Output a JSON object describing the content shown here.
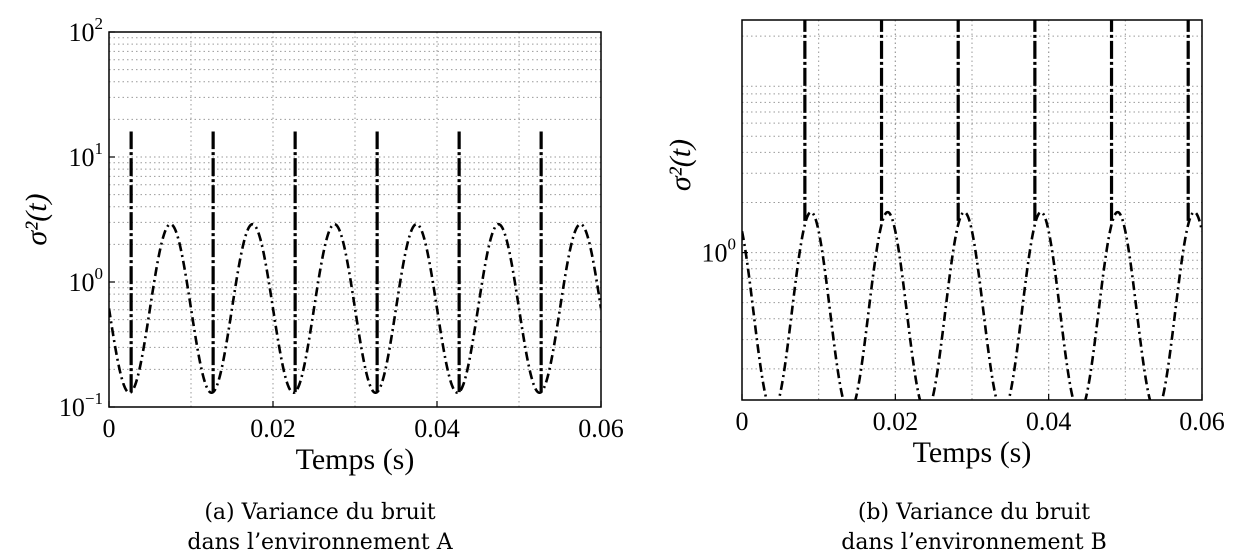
{
  "chart_data": [
    {
      "type": "line",
      "xlabel": "Temps (s)",
      "ylabel": "σ²(t)",
      "xlim": [
        0,
        0.06
      ],
      "ylim": [
        0.1,
        100
      ],
      "yscale": "log",
      "grid": true,
      "line_style": "dash-dot, black",
      "xticks": [
        0,
        0.02,
        0.04,
        0.06
      ],
      "xtick_labels": [
        "0",
        "0.02",
        "0.04",
        "0.06"
      ],
      "yticks": [
        0.1,
        1,
        10,
        100
      ],
      "ytick_labels": [
        {
          "base": "10",
          "exp": "−1"
        },
        {
          "base": "10",
          "exp": "0"
        },
        {
          "base": "10",
          "exp": "1"
        },
        {
          "base": "10",
          "exp": "2"
        }
      ],
      "period": 0.01,
      "trough": 0.13,
      "peak": 2.9,
      "peak_times": [
        0.0075,
        0.0175,
        0.0275,
        0.0375,
        0.0475,
        0.0575
      ],
      "spike_times": [
        0.0027,
        0.0127,
        0.0227,
        0.0327,
        0.0427,
        0.0527
      ],
      "spike_value": 16,
      "caption": [
        "(a)  Variance  du  bruit",
        "dans l’environnement A"
      ]
    },
    {
      "type": "line",
      "xlabel": "Temps (s)",
      "ylabel": "σ²(t)",
      "xlim": [
        0,
        0.06
      ],
      "ylim": [
        0.13,
        25
      ],
      "yscale": "log",
      "grid": true,
      "line_style": "dash-dot, black",
      "xticks": [
        0,
        0.02,
        0.04,
        0.06
      ],
      "xtick_labels": [
        "0",
        "0.02",
        "0.04",
        "0.06"
      ],
      "yticks": [
        1
      ],
      "ytick_labels": [
        {
          "base": "10",
          "exp": "0"
        }
      ],
      "period": 0.01,
      "trough": 0.11,
      "peak": 1.75,
      "peak_times": [
        0.009,
        0.019,
        0.029,
        0.039,
        0.049,
        0.059
      ],
      "spike_times": [
        0.0082,
        0.0182,
        0.0282,
        0.0382,
        0.0482,
        0.0582
      ],
      "spike_base": 1.55,
      "spike_value": 100,
      "caption": [
        "(b)  Variance  du  bruit",
        "dans l’environnement B"
      ]
    }
  ]
}
